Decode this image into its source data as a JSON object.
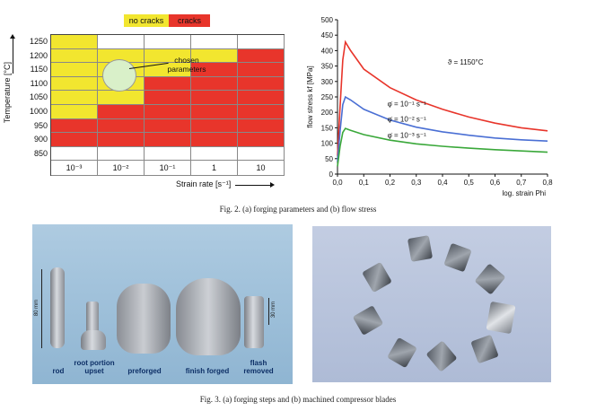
{
  "figure2": {
    "forging_map": {
      "legend": {
        "no_cracks": "no cracks",
        "cracks": "cracks"
      },
      "colors": {
        "no_cracks": "#f2e62f",
        "cracks": "#e8352b",
        "chosen_circle": "#d9f0c9"
      },
      "y_axis_label": "Temperature [°C]",
      "x_axis_label": "Strain rate [s⁻¹]",
      "temperatures": [
        "1250",
        "1200",
        "1150",
        "1100",
        "1050",
        "1000",
        "950",
        "900",
        "850"
      ],
      "strain_rates": [
        "10⁻³",
        "10⁻²",
        "10⁻¹",
        "1",
        "10"
      ],
      "cells": [
        [
          "Y",
          "W",
          "W",
          "W",
          "W"
        ],
        [
          "Y",
          "Y",
          "Y",
          "Y",
          "R"
        ],
        [
          "Y",
          "Y",
          "Y",
          "R",
          "R"
        ],
        [
          "Y",
          "Y",
          "R",
          "R",
          "R"
        ],
        [
          "Y",
          "Y",
          "R",
          "R",
          "R"
        ],
        [
          "Y",
          "R",
          "R",
          "R",
          "R"
        ],
        [
          "R",
          "R",
          "R",
          "R",
          "R"
        ],
        [
          "R",
          "R",
          "R",
          "R",
          "R"
        ],
        [
          "W",
          "W",
          "W",
          "W",
          "W"
        ]
      ],
      "annotation": "chosen parameters"
    },
    "caption": "Fig. 2. (a) forging parameters and (b) flow stress"
  },
  "chart_data": {
    "type": "line",
    "ylabel": "flow stress kf [MPa]",
    "xlabel": "log. strain Phi",
    "xlim": [
      0,
      0.8
    ],
    "ylim": [
      0,
      500
    ],
    "x_ticks": [
      "0,0",
      "0,1",
      "0,2",
      "0,3",
      "0,4",
      "0,5",
      "0,6",
      "0,7",
      "0,8"
    ],
    "y_ticks": [
      "0",
      "50",
      "100",
      "150",
      "200",
      "250",
      "300",
      "350",
      "400",
      "450",
      "500"
    ],
    "annotations": [
      {
        "text": "ϑ = 1150°C",
        "x": 0.42,
        "y": 355
      },
      {
        "text": "φ̇ = 10⁻¹ s⁻¹",
        "x": 0.19,
        "y": 220
      },
      {
        "text": "φ̇ = 10⁻² s⁻¹",
        "x": 0.19,
        "y": 170
      },
      {
        "text": "φ̇ = 10⁻³ s⁻¹",
        "x": 0.19,
        "y": 118
      }
    ],
    "series": [
      {
        "color": "#e8352b",
        "x": [
          0,
          0.01,
          0.02,
          0.03,
          0.05,
          0.1,
          0.2,
          0.3,
          0.4,
          0.5,
          0.6,
          0.7,
          0.8
        ],
        "y": [
          60,
          220,
          370,
          428,
          400,
          340,
          280,
          240,
          210,
          185,
          165,
          150,
          140
        ]
      },
      {
        "color": "#4a6fd4",
        "x": [
          0,
          0.01,
          0.02,
          0.03,
          0.05,
          0.1,
          0.2,
          0.3,
          0.4,
          0.5,
          0.6,
          0.7,
          0.8
        ],
        "y": [
          40,
          140,
          225,
          250,
          240,
          210,
          175,
          152,
          137,
          126,
          117,
          111,
          107
        ]
      },
      {
        "color": "#3aa83a",
        "x": [
          0,
          0.01,
          0.02,
          0.03,
          0.05,
          0.1,
          0.2,
          0.3,
          0.4,
          0.5,
          0.6,
          0.7,
          0.8
        ],
        "y": [
          25,
          90,
          135,
          148,
          142,
          128,
          110,
          98,
          90,
          84,
          79,
          75,
          71
        ]
      }
    ]
  },
  "figure3": {
    "stage_labels": [
      "rod",
      "root portion upset",
      "preforged",
      "finish forged",
      "flash removed"
    ],
    "dimension_labels": {
      "rod_length": "80 mm",
      "flash_removed_height": "30 mm"
    },
    "caption": "Fig. 3. (a) forging steps and (b) machined compressor blades"
  }
}
